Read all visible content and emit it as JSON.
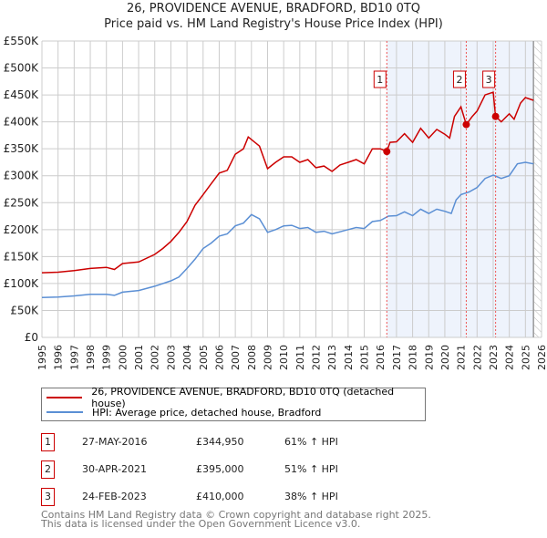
{
  "chart_data": {
    "type": "line",
    "title": "26, PROVIDENCE AVENUE, BRADFORD, BD10 0TQ",
    "subtitle": "Price paid vs. HM Land Registry's House Price Index (HPI)",
    "xlim": [
      1995,
      2026
    ],
    "ylim": [
      0,
      550000
    ],
    "x_ticks": [
      "1995",
      "1996",
      "1997",
      "1998",
      "1999",
      "2000",
      "2001",
      "2002",
      "2003",
      "2004",
      "2005",
      "2006",
      "2007",
      "2008",
      "2009",
      "2010",
      "2011",
      "2012",
      "2013",
      "2014",
      "2015",
      "2016",
      "2017",
      "2018",
      "2019",
      "2020",
      "2021",
      "2022",
      "2023",
      "2024",
      "2025",
      "2026"
    ],
    "y_ticks": [
      {
        "v": 0,
        "label": "£0"
      },
      {
        "v": 50000,
        "label": "£50K"
      },
      {
        "v": 100000,
        "label": "£100K"
      },
      {
        "v": 150000,
        "label": "£150K"
      },
      {
        "v": 200000,
        "label": "£200K"
      },
      {
        "v": 250000,
        "label": "£250K"
      },
      {
        "v": 300000,
        "label": "£300K"
      },
      {
        "v": 350000,
        "label": "£350K"
      },
      {
        "v": 400000,
        "label": "£400K"
      },
      {
        "v": 450000,
        "label": "£450K"
      },
      {
        "v": 500000,
        "label": "£500K"
      },
      {
        "v": 550000,
        "label": "£550K"
      }
    ],
    "grid": true,
    "shaded_period": [
      2016.4,
      2025.5
    ],
    "series": [
      {
        "name": "26, PROVIDENCE AVENUE, BRADFORD, BD10 0TQ (detached house)",
        "color": "#cc0000",
        "points": [
          [
            1995,
            120
          ],
          [
            1996,
            121
          ],
          [
            1997,
            124
          ],
          [
            1998,
            128
          ],
          [
            1999,
            130
          ],
          [
            1999.5,
            126
          ],
          [
            2000,
            137
          ],
          [
            2001,
            140
          ],
          [
            2002,
            154
          ],
          [
            2002.5,
            165
          ],
          [
            2003,
            178
          ],
          [
            2003.5,
            195
          ],
          [
            2004,
            215
          ],
          [
            2004.5,
            245
          ],
          [
            2005,
            265
          ],
          [
            2005.5,
            285
          ],
          [
            2006,
            305
          ],
          [
            2006.5,
            310
          ],
          [
            2007,
            340
          ],
          [
            2007.5,
            350
          ],
          [
            2007.8,
            372
          ],
          [
            2008.5,
            355
          ],
          [
            2009,
            313
          ],
          [
            2009.5,
            325
          ],
          [
            2010,
            335
          ],
          [
            2010.5,
            335
          ],
          [
            2011,
            325
          ],
          [
            2011.5,
            330
          ],
          [
            2012,
            315
          ],
          [
            2012.5,
            318
          ],
          [
            2013,
            308
          ],
          [
            2013.5,
            320
          ],
          [
            2014,
            325
          ],
          [
            2014.5,
            330
          ],
          [
            2015,
            322
          ],
          [
            2015.5,
            350
          ],
          [
            2016,
            350
          ],
          [
            2016.4,
            345
          ],
          [
            2016.6,
            362
          ],
          [
            2017,
            363
          ],
          [
            2017.5,
            378
          ],
          [
            2018,
            362
          ],
          [
            2018.5,
            388
          ],
          [
            2019,
            370
          ],
          [
            2019.5,
            386
          ],
          [
            2020,
            377
          ],
          [
            2020.3,
            370
          ],
          [
            2020.6,
            410
          ],
          [
            2021,
            428
          ],
          [
            2021.33,
            395
          ],
          [
            2021.7,
            410
          ],
          [
            2022,
            420
          ],
          [
            2022.5,
            450
          ],
          [
            2023,
            455
          ],
          [
            2023.15,
            410
          ],
          [
            2023.5,
            400
          ],
          [
            2024,
            415
          ],
          [
            2024.3,
            405
          ],
          [
            2024.7,
            435
          ],
          [
            2025,
            445
          ],
          [
            2025.5,
            440
          ]
        ]
      },
      {
        "name": "HPI: Average price, detached house, Bradford",
        "color": "#5b8fd4",
        "points": [
          [
            1995,
            74
          ],
          [
            1996,
            75
          ],
          [
            1997,
            77
          ],
          [
            1998,
            80
          ],
          [
            1999,
            80
          ],
          [
            1999.5,
            78
          ],
          [
            2000,
            84
          ],
          [
            2001,
            87
          ],
          [
            2002,
            95
          ],
          [
            2003,
            105
          ],
          [
            2003.5,
            112
          ],
          [
            2004,
            128
          ],
          [
            2004.5,
            145
          ],
          [
            2005,
            165
          ],
          [
            2005.5,
            175
          ],
          [
            2006,
            188
          ],
          [
            2006.5,
            192
          ],
          [
            2007,
            207
          ],
          [
            2007.5,
            212
          ],
          [
            2008,
            228
          ],
          [
            2008.5,
            220
          ],
          [
            2009,
            195
          ],
          [
            2009.5,
            200
          ],
          [
            2010,
            207
          ],
          [
            2010.5,
            208
          ],
          [
            2011,
            202
          ],
          [
            2011.5,
            204
          ],
          [
            2012,
            195
          ],
          [
            2012.5,
            197
          ],
          [
            2013,
            192
          ],
          [
            2013.5,
            196
          ],
          [
            2014,
            200
          ],
          [
            2014.5,
            204
          ],
          [
            2015,
            202
          ],
          [
            2015.5,
            215
          ],
          [
            2016,
            217
          ],
          [
            2016.5,
            225
          ],
          [
            2017,
            226
          ],
          [
            2017.5,
            233
          ],
          [
            2018,
            226
          ],
          [
            2018.5,
            238
          ],
          [
            2019,
            230
          ],
          [
            2019.5,
            238
          ],
          [
            2020,
            234
          ],
          [
            2020.4,
            230
          ],
          [
            2020.7,
            255
          ],
          [
            2021,
            265
          ],
          [
            2021.5,
            270
          ],
          [
            2022,
            278
          ],
          [
            2022.5,
            295
          ],
          [
            2023,
            301
          ],
          [
            2023.5,
            295
          ],
          [
            2024,
            300
          ],
          [
            2024.5,
            322
          ],
          [
            2025,
            325
          ],
          [
            2025.5,
            322
          ]
        ]
      }
    ],
    "sales": [
      {
        "label": "1",
        "x": 2016.4,
        "y": 344950
      },
      {
        "label": "2",
        "x": 2021.33,
        "y": 395000
      },
      {
        "label": "3",
        "x": 2023.15,
        "y": 410000
      }
    ]
  },
  "legend": {
    "property": "26, PROVIDENCE AVENUE, BRADFORD, BD10 0TQ (detached house)",
    "hpi": "HPI: Average price, detached house, Bradford"
  },
  "transactions": [
    {
      "num": "1",
      "date": "27-MAY-2016",
      "price": "£344,950",
      "hpi": "61% ↑ HPI"
    },
    {
      "num": "2",
      "date": "30-APR-2021",
      "price": "£395,000",
      "hpi": "51% ↑ HPI"
    },
    {
      "num": "3",
      "date": "24-FEB-2023",
      "price": "£410,000",
      "hpi": "38% ↑ HPI"
    }
  ],
  "footer": {
    "line1": "Contains HM Land Registry data © Crown copyright and database right 2025.",
    "line2": "This data is licensed under the Open Government Licence v3.0."
  }
}
